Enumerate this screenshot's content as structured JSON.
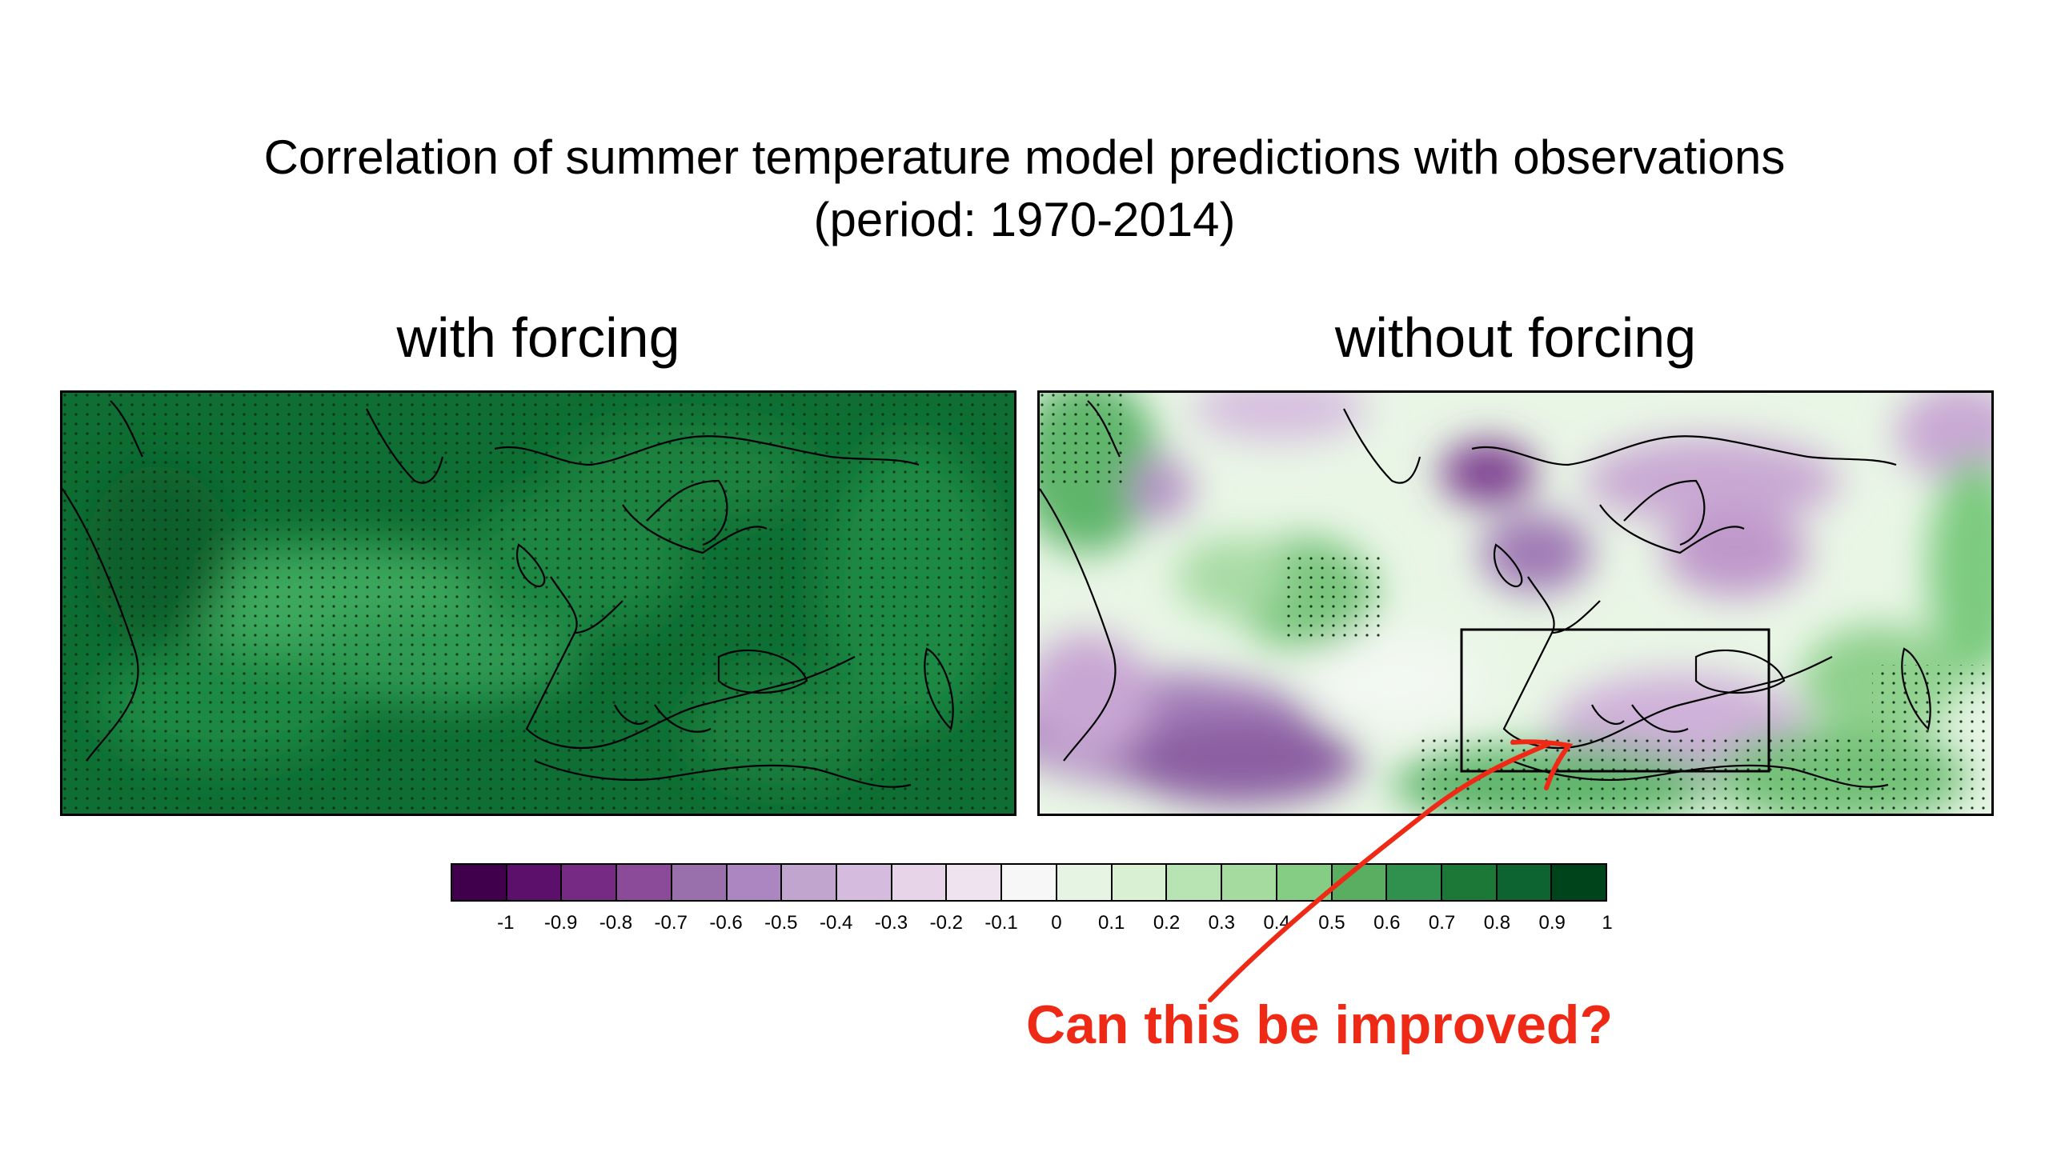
{
  "title_line1": "Correlation of summer temperature model predictions with observations",
  "title_line2": "(period: 1970-2014)",
  "panels": [
    {
      "title": "with forcing"
    },
    {
      "title": "without forcing"
    }
  ],
  "colorbar": {
    "colors": [
      "#40004b",
      "#5c0f6b",
      "#762a83",
      "#8c4b98",
      "#9970ab",
      "#ab86c0",
      "#c2a5cf",
      "#d5bbdd",
      "#e7d4e8",
      "#efe3f0",
      "#f7f7f7",
      "#e6f5e3",
      "#d9f0d3",
      "#b8e3b2",
      "#a6dba0",
      "#85cc84",
      "#5aae61",
      "#30914f",
      "#1b7837",
      "#0e6430",
      "#00441b"
    ],
    "ticks": [
      "-1",
      "-0.9",
      "-0.8",
      "-0.7",
      "-0.6",
      "-0.5",
      "-0.4",
      "-0.3",
      "-0.2",
      "-0.1",
      "0",
      "0.1",
      "0.2",
      "0.3",
      "0.4",
      "0.5",
      "0.6",
      "0.7",
      "0.8",
      "0.9",
      "1"
    ]
  },
  "annotation": {
    "text": "Can this be improved?",
    "color": "#ee2a16"
  },
  "chart_data": {
    "type": "heatmap",
    "title": "Correlation of summer temperature model predictions with observations (period: 1970-2014)",
    "value_range": [
      -1,
      1
    ],
    "panels": [
      {
        "name": "with forcing",
        "typical_correlation": 0.85,
        "stippled": true
      },
      {
        "name": "without forcing",
        "typical_correlation": 0.1,
        "stippled": "partial"
      }
    ]
  }
}
